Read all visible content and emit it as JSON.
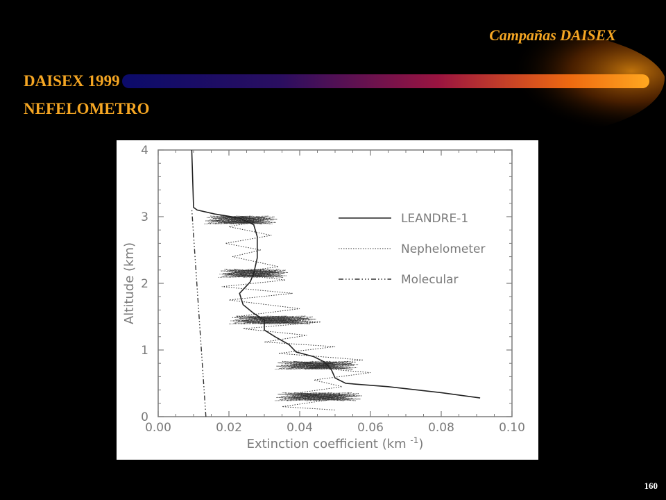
{
  "header": {
    "title": "Campañas DAISEX"
  },
  "slide": {
    "title_line1": "DAISEX 1999",
    "title_line2": "NEFELOMETRO",
    "page_number": "160"
  },
  "colors": {
    "accent": "#f5a623",
    "background": "#000000",
    "bar_left": "#101080",
    "bar_right": "#ff9a10"
  },
  "chart_data": {
    "type": "line",
    "xlabel": "Extinction coefficient (km",
    "xlabel_unit_sup": "-1",
    "xlabel_tail": ")",
    "ylabel": "Altitude (km)",
    "xlim": [
      0,
      0.1
    ],
    "ylim": [
      0,
      4
    ],
    "x_ticks": [
      0,
      0.02,
      0.04,
      0.06,
      0.08,
      0.1
    ],
    "x_tick_labels": [
      "0.00",
      "0.02",
      "0.04",
      "0.06",
      "0.08",
      "0.10"
    ],
    "y_ticks": [
      0,
      1,
      2,
      3,
      4
    ],
    "y_tick_labels": [
      "0",
      "1",
      "2",
      "3",
      "4"
    ],
    "legend_position": "top-right",
    "grid": false,
    "series": [
      {
        "name": "LEANDRE-1",
        "style": "solid",
        "points": [
          [
            0.091,
            0.28
          ],
          [
            0.08,
            0.36
          ],
          [
            0.065,
            0.45
          ],
          [
            0.053,
            0.5
          ],
          [
            0.05,
            0.58
          ],
          [
            0.049,
            0.7
          ],
          [
            0.047,
            0.82
          ],
          [
            0.044,
            0.9
          ],
          [
            0.039,
            0.97
          ],
          [
            0.037,
            1.08
          ],
          [
            0.033,
            1.2
          ],
          [
            0.03,
            1.3
          ],
          [
            0.03,
            1.45
          ],
          [
            0.027,
            1.55
          ],
          [
            0.024,
            1.68
          ],
          [
            0.023,
            1.85
          ],
          [
            0.026,
            2.02
          ],
          [
            0.027,
            2.15
          ],
          [
            0.028,
            2.38
          ],
          [
            0.028,
            2.7
          ],
          [
            0.027,
            2.88
          ],
          [
            0.023,
            2.98
          ],
          [
            0.016,
            3.04
          ],
          [
            0.011,
            3.1
          ],
          [
            0.01,
            3.14
          ],
          [
            0.0095,
            4.0
          ]
        ]
      },
      {
        "name": "Nephelometer",
        "style": "dotted",
        "points": [
          [
            0.022,
            2.98
          ],
          [
            0.03,
            2.95
          ],
          [
            0.02,
            2.85
          ],
          [
            0.032,
            2.72
          ],
          [
            0.019,
            2.6
          ],
          [
            0.029,
            2.5
          ],
          [
            0.021,
            2.4
          ],
          [
            0.034,
            2.25
          ],
          [
            0.02,
            2.15
          ],
          [
            0.036,
            2.05
          ],
          [
            0.018,
            1.95
          ],
          [
            0.038,
            1.85
          ],
          [
            0.02,
            1.75
          ],
          [
            0.04,
            1.62
          ],
          [
            0.022,
            1.5
          ],
          [
            0.046,
            1.42
          ],
          [
            0.024,
            1.32
          ],
          [
            0.042,
            1.22
          ],
          [
            0.03,
            1.12
          ],
          [
            0.05,
            1.05
          ],
          [
            0.034,
            0.95
          ],
          [
            0.058,
            0.85
          ],
          [
            0.04,
            0.75
          ],
          [
            0.06,
            0.66
          ],
          [
            0.044,
            0.55
          ],
          [
            0.052,
            0.45
          ],
          [
            0.04,
            0.36
          ],
          [
            0.048,
            0.25
          ],
          [
            0.035,
            0.15
          ],
          [
            0.05,
            0.1
          ]
        ]
      },
      {
        "name": "Molecular",
        "style": "dash-dot",
        "points": [
          [
            0.0135,
            0.0
          ],
          [
            0.0095,
            3.12
          ]
        ]
      }
    ]
  }
}
